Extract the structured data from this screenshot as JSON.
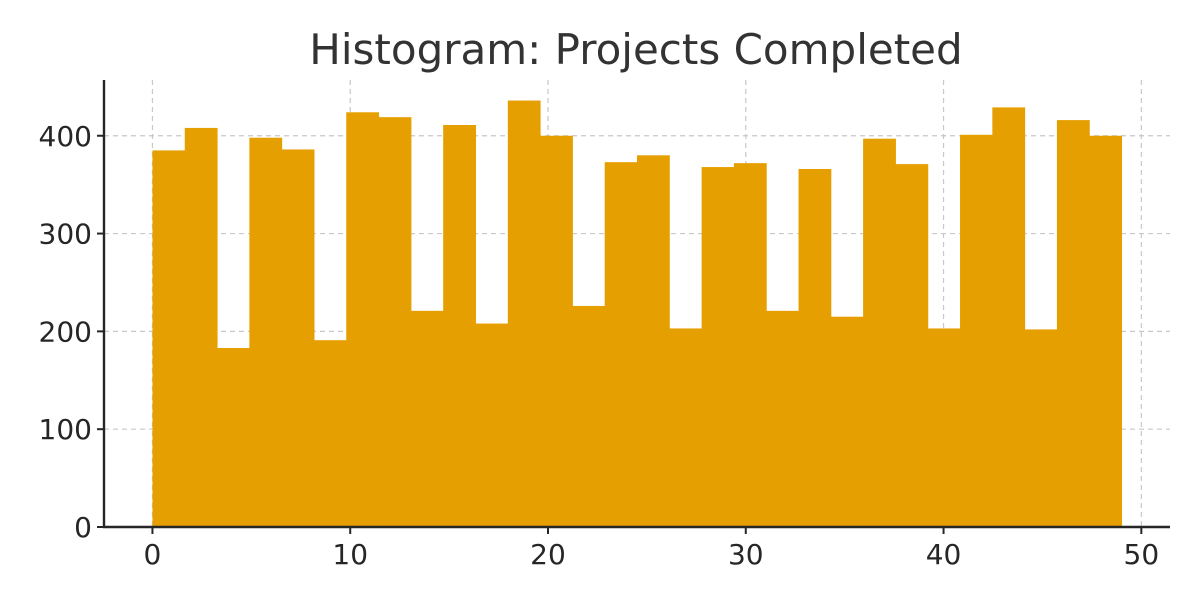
{
  "chart_data": {
    "type": "bar",
    "title": "Histogram: Projects Completed",
    "xlabel": "",
    "ylabel": "",
    "bar_color": "#E69F00",
    "grid": true,
    "xlim": [
      -2.45,
      51.45
    ],
    "ylim": [
      0,
      457
    ],
    "x_ticks": [
      0,
      10,
      20,
      30,
      40,
      50
    ],
    "y_ticks": [
      0,
      100,
      200,
      300,
      400
    ],
    "bin_edges": [
      0,
      1.633,
      3.267,
      4.9,
      6.533,
      8.167,
      9.8,
      11.433,
      13.067,
      14.7,
      16.333,
      17.967,
      19.6,
      21.233,
      22.867,
      24.5,
      26.133,
      27.767,
      29.4,
      31.033,
      32.667,
      34.3,
      35.933,
      37.567,
      39.2,
      40.833,
      42.467,
      44.1,
      45.733,
      47.367,
      49.0
    ],
    "values": [
      385,
      408,
      183,
      398,
      386,
      191,
      424,
      419,
      221,
      411,
      208,
      436,
      400,
      226,
      373,
      380,
      203,
      368,
      372,
      221,
      366,
      215,
      397,
      371,
      203,
      401,
      429,
      202,
      416,
      400
    ]
  }
}
